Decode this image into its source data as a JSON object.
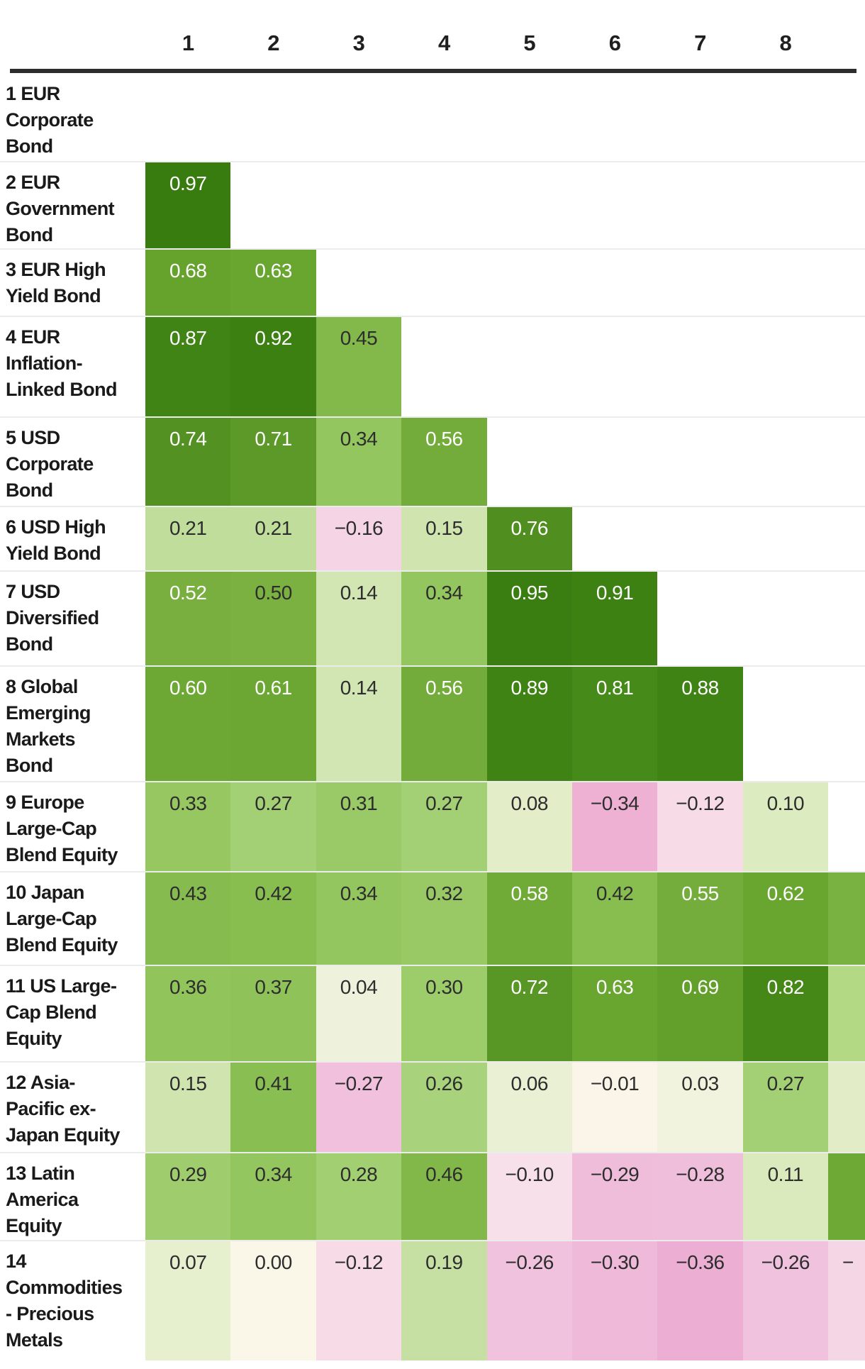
{
  "chart_data": {
    "type": "heatmap",
    "description_of_visual": "Lower-triangular asset-class correlation matrix; green cells = positive correlation, pink cells = negative correlation",
    "col_labels": [
      "1",
      "2",
      "3",
      "4",
      "5",
      "6",
      "7",
      "8"
    ],
    "row_labels": [
      "1 EUR Corporate Bond",
      "2 EUR Government Bond",
      "3 EUR High Yield Bond",
      "4 EUR Inflation-Linked Bond",
      "5 USD Corporate Bond",
      "6 USD High Yield Bond",
      "7 USD Diversified Bond",
      "8 Global Emerging Markets Bond",
      "9 Europe Large-Cap Blend Equity",
      "10 Japan Large-Cap Blend Equity",
      "11 US Large-Cap Blend Equity",
      "12 Asia-Pacific ex-Japan Equity",
      "13 Latin America Equity",
      "14 Commodities - Precious Metals"
    ],
    "row_label_lines": [
      [
        "1 EUR",
        "Corporate",
        "Bond"
      ],
      [
        "2 EUR",
        "Government",
        "Bond"
      ],
      [
        "3 EUR High",
        "Yield Bond"
      ],
      [
        "4 EUR",
        "Inflation-",
        "Linked Bond"
      ],
      [
        "5 USD",
        "Corporate",
        "Bond"
      ],
      [
        "6 USD High",
        "Yield Bond"
      ],
      [
        "7 USD",
        "Diversified",
        "Bond"
      ],
      [
        "8 Global",
        "Emerging",
        "Markets",
        "Bond"
      ],
      [
        "9 Europe",
        "Large-Cap",
        "Blend Equity"
      ],
      [
        "10 Japan",
        "Large-Cap",
        "Blend Equity"
      ],
      [
        "11 US Large-",
        "Cap Blend",
        "Equity"
      ],
      [
        "12 Asia-",
        "Pacific ex-",
        "Japan Equity"
      ],
      [
        "13 Latin",
        "America",
        "Equity"
      ],
      [
        "14",
        "Commodities",
        "- Precious",
        "Metals"
      ]
    ],
    "matrix": [
      [],
      [
        0.97
      ],
      [
        0.68,
        0.63
      ],
      [
        0.87,
        0.92,
        0.45
      ],
      [
        0.74,
        0.71,
        0.34,
        0.56
      ],
      [
        0.21,
        0.21,
        -0.16,
        0.15,
        0.76
      ],
      [
        0.52,
        0.5,
        0.14,
        0.34,
        0.95,
        0.91
      ],
      [
        0.6,
        0.61,
        0.14,
        0.56,
        0.89,
        0.81,
        0.88
      ],
      [
        0.33,
        0.27,
        0.31,
        0.27,
        0.08,
        -0.34,
        -0.12,
        0.1
      ],
      [
        0.43,
        0.42,
        0.34,
        0.32,
        0.58,
        0.42,
        0.55,
        0.62
      ],
      [
        0.36,
        0.37,
        0.04,
        0.3,
        0.72,
        0.63,
        0.69,
        0.82
      ],
      [
        0.15,
        0.41,
        -0.27,
        0.26,
        0.06,
        -0.01,
        0.03,
        0.27
      ],
      [
        0.29,
        0.34,
        0.28,
        0.46,
        -0.1,
        -0.29,
        -0.28,
        0.11
      ],
      [
        0.07,
        0.0,
        -0.12,
        0.19,
        -0.26,
        -0.3,
        -0.36,
        -0.26
      ]
    ],
    "partial_column_9_cut_at_right_edge": {
      "visible_for_rows": [
        10,
        11,
        12,
        13,
        14
      ],
      "cell_colors": [
        "#79b240",
        "#b4d985",
        "#e2ecc6",
        "#6fa935",
        "#f4d6e5"
      ],
      "visible_text_row_14": "−"
    },
    "color_scale": {
      "positive_color_family": "green",
      "negative_color_family": "pink",
      "stops": [
        [
          -0.4,
          "#e8aad0"
        ],
        [
          -0.34,
          "#eeb1d4"
        ],
        [
          -0.28,
          "#efbedb"
        ],
        [
          -0.2,
          "#f3cee3"
        ],
        [
          -0.14,
          "#f6d8e6"
        ],
        [
          -0.08,
          "#f9e4ec"
        ],
        [
          -0.02,
          "#faf2e9"
        ],
        [
          0.0,
          "#faf6e8"
        ],
        [
          0.04,
          "#eef2dc"
        ],
        [
          0.08,
          "#e3eec9"
        ],
        [
          0.12,
          "#d7e8b9"
        ],
        [
          0.17,
          "#cbe2a9"
        ],
        [
          0.22,
          "#bedc99"
        ],
        [
          0.27,
          "#a3d074"
        ],
        [
          0.33,
          "#96c761"
        ],
        [
          0.38,
          "#8dc257"
        ],
        [
          0.44,
          "#85bb4d"
        ],
        [
          0.5,
          "#7bb140"
        ],
        [
          0.56,
          "#73ac3a"
        ],
        [
          0.62,
          "#69a630"
        ],
        [
          0.68,
          "#66a32d"
        ],
        [
          0.73,
          "#559324"
        ],
        [
          0.78,
          "#4c8d1c"
        ],
        [
          0.84,
          "#418616"
        ],
        [
          0.9,
          "#3e8214"
        ],
        [
          0.96,
          "#397c0f"
        ],
        [
          1.0,
          "#34780b"
        ]
      ],
      "white_text_threshold": 0.515,
      "dark_text_color": "#2d2d2d",
      "white_text_color": "#ffffff"
    },
    "grid": "row separator lines light grey, thick dark rule under column headers"
  }
}
